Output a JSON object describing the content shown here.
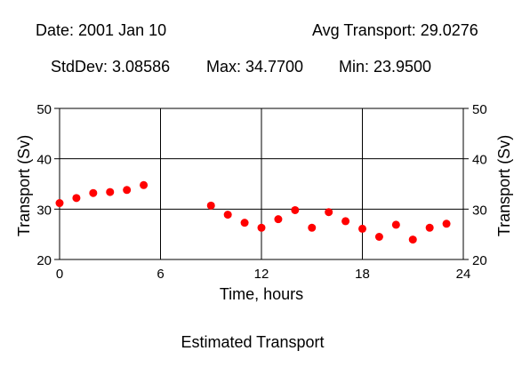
{
  "header": {
    "date": "Date: 2001 Jan 10",
    "avg": "Avg Transport: 29.0276",
    "stddev": "StdDev: 3.08586",
    "max": "Max: 34.7700",
    "min": "Min: 23.9500"
  },
  "chart_data": {
    "type": "scatter",
    "title": "Estimated Transport",
    "xlabel": "Time, hours",
    "ylabel": "Transport (Sv)",
    "ylabel_right": "Transport (Sv)",
    "xlim": [
      0,
      24
    ],
    "ylim": [
      20,
      50
    ],
    "xticks": [
      0,
      6,
      12,
      18,
      24
    ],
    "yticks": [
      20,
      30,
      40,
      50
    ],
    "grid": true,
    "marker_color": "#ff0000",
    "series": [
      {
        "points": [
          {
            "x": 0,
            "y": 31.2
          },
          {
            "x": 1,
            "y": 32.2
          },
          {
            "x": 2,
            "y": 33.2
          },
          {
            "x": 3,
            "y": 33.4
          },
          {
            "x": 4,
            "y": 33.8
          },
          {
            "x": 5,
            "y": 34.77
          },
          {
            "x": 9,
            "y": 30.7
          },
          {
            "x": 10,
            "y": 28.9
          },
          {
            "x": 11,
            "y": 27.3
          },
          {
            "x": 12,
            "y": 26.3
          },
          {
            "x": 13,
            "y": 28.0
          },
          {
            "x": 14,
            "y": 29.8
          },
          {
            "x": 15,
            "y": 26.3
          },
          {
            "x": 16,
            "y": 29.4
          },
          {
            "x": 17,
            "y": 27.6
          },
          {
            "x": 18,
            "y": 26.1
          },
          {
            "x": 19,
            "y": 24.5
          },
          {
            "x": 20,
            "y": 26.9
          },
          {
            "x": 21,
            "y": 23.95
          },
          {
            "x": 22,
            "y": 26.3
          },
          {
            "x": 23,
            "y": 27.1
          }
        ]
      }
    ]
  }
}
